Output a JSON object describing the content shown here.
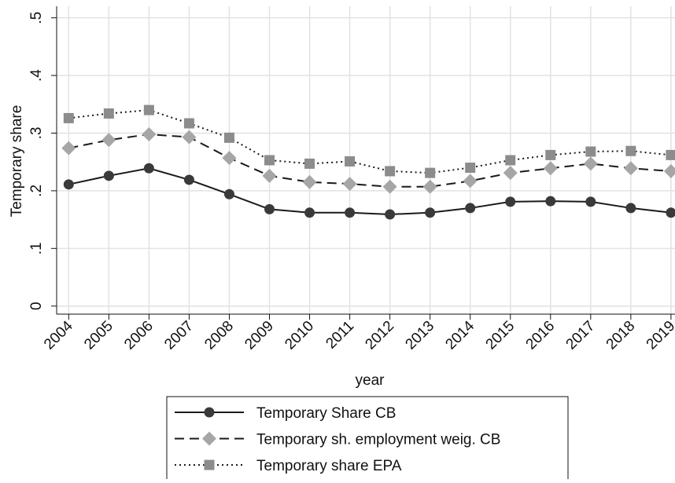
{
  "chart_data": {
    "type": "line",
    "x_label": "year",
    "y_label": "Temporary share",
    "x": [
      2004,
      2005,
      2006,
      2007,
      2008,
      2009,
      2010,
      2011,
      2012,
      2013,
      2014,
      2015,
      2016,
      2017,
      2018,
      2019
    ],
    "xlim": [
      2003.7,
      2019.1
    ],
    "xticks": [
      2004,
      2005,
      2006,
      2007,
      2008,
      2009,
      2010,
      2011,
      2012,
      2013,
      2014,
      2015,
      2016,
      2017,
      2018,
      2019
    ],
    "ylim": [
      -0.014,
      0.52
    ],
    "yticks": [
      0,
      {
        "value": 0.1,
        "label": ".1"
      },
      {
        "value": 0.2,
        "label": ".2"
      },
      {
        "value": 0.3,
        "label": ".3"
      },
      {
        "value": 0.4,
        "label": ".4"
      },
      {
        "value": 0.5,
        "label": ".5"
      }
    ],
    "grid": true,
    "series": [
      {
        "name": "Temporary Share CB",
        "color": "#1a1a1a",
        "marker": "circle",
        "marker_color": "#3a3a3a",
        "line_style": "solid",
        "values": [
          0.211,
          0.226,
          0.239,
          0.219,
          0.194,
          0.168,
          0.162,
          0.162,
          0.159,
          0.162,
          0.17,
          0.181,
          0.182,
          0.181,
          0.17,
          0.162
        ]
      },
      {
        "name": "Temporary sh. employment weig. CB",
        "color": "#1a1a1a",
        "marker": "diamond",
        "marker_color": "#a6a6a6",
        "line_style": "dashed",
        "values": [
          0.274,
          0.288,
          0.298,
          0.293,
          0.257,
          0.226,
          0.215,
          0.212,
          0.207,
          0.207,
          0.217,
          0.231,
          0.239,
          0.247,
          0.239,
          0.234
        ]
      },
      {
        "name": "Temporary share EPA",
        "color": "#1a1a1a",
        "marker": "square",
        "marker_color": "#8c8c8c",
        "line_style": "dotted",
        "values": [
          0.326,
          0.334,
          0.34,
          0.317,
          0.292,
          0.253,
          0.247,
          0.251,
          0.234,
          0.231,
          0.24,
          0.253,
          0.262,
          0.268,
          0.269,
          0.262
        ]
      }
    ]
  }
}
